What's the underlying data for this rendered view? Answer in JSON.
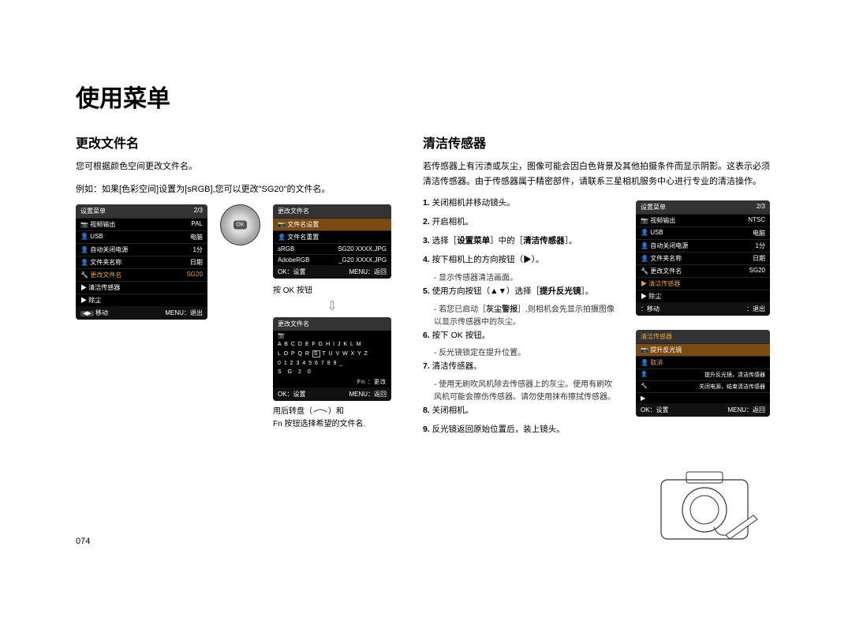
{
  "page_number": "074",
  "main_title": "使用菜单",
  "left": {
    "subtitle": "更改文件名",
    "p1": "您可根据颜色空间更改文件名。",
    "p2": "例如：如果[色彩空间]设置为[sRGB],您可以更改\"SG20\"的文件名。",
    "ok_caption": "按 OK 按钮",
    "bottom_caption1": "用后转盘（",
    "bottom_caption2": "）和",
    "bottom_caption3": "Fn 按钮选择希望的文件名.",
    "menu1": {
      "title": "设置菜单",
      "page": "2/3",
      "rows": [
        {
          "icon": "📷",
          "label": "视频输出",
          "val": "PAL"
        },
        {
          "icon": "👤",
          "label": "USB",
          "val": "电脑"
        },
        {
          "icon": "👤",
          "label": "自动关闭电源",
          "val": "1分"
        },
        {
          "icon": "👤",
          "label": "文件夹名称",
          "val": "日期"
        },
        {
          "icon": "🔧",
          "label": "更改文件名",
          "val": "SG20",
          "sel": true
        },
        {
          "icon": "▶",
          "label": "清洁传感器",
          "val": ""
        },
        {
          "icon": "▶",
          "label": "除尘",
          "val": ""
        }
      ],
      "foot_l": "移动",
      "foot_r": "MENU：退出"
    },
    "menu2": {
      "title": "更改文件名",
      "rows": [
        {
          "icon": "📷",
          "label": "文件名设置",
          "val": "",
          "hl": true
        },
        {
          "icon": "👤",
          "label": "文件名重置",
          "val": ""
        }
      ],
      "row3a": "sRGB",
      "row3b": "SG20 XXXX.JPG",
      "row4a": "AdobeRGB",
      "row4b": "_G20 XXXX.JPG",
      "foot_l": "OK：设置",
      "foot_r": "MENU：返回"
    },
    "menu3": {
      "title": "更改文件名",
      "alpha1": "A B C D E F G H I J K L M",
      "alpha2": "L O P Q R",
      "alpha2_sel": "S",
      "alpha2b": "T U V W X Y Z",
      "alpha3": "0 1 2 3 4 5 6 7 8 9 _",
      "entry": "S G 2 0",
      "fn": "Fn  ：更改",
      "foot_l": "OK：设置",
      "foot_r": "MENU：返回"
    }
  },
  "right": {
    "subtitle": "清洁传感器",
    "p1": "若传感器上有污渍或灰尘，图像可能会因白色背景及其他拍摄条件而显示阴影。这表示必须清洁传感器。由于传感器属于精密部件，请联系三星相机服务中心进行专业的清洁操作。",
    "steps": [
      {
        "n": "1.",
        "t": "关闭相机并移动镜头。"
      },
      {
        "n": "2.",
        "t": "开启相机。"
      },
      {
        "n": "3.",
        "t": "选择［设置菜单］中的［清洁传感器］。",
        "bold": [
          "设置菜单",
          "清洁传感器"
        ]
      },
      {
        "n": "4.",
        "t": "按下相机上的方向按钮（▶）。",
        "sub": "- 显示传感器清洁画面。"
      },
      {
        "n": "5.",
        "t": "使用方向按钮（▲▼）选择［提升反光镜］。",
        "bold": [
          "提升反光镜"
        ],
        "sub": "- 若您已启动［灰尘警报］,则相机会先显示拍摄图像以显示传感器中的灰尘。",
        "sub_bold": [
          "灰尘警报"
        ]
      },
      {
        "n": "6.",
        "t": "按下 OK 按钮。",
        "sub": "- 反光镜锁定在提升位置。"
      },
      {
        "n": "7.",
        "t": "清洁传感器。",
        "sub": "- 使用无刷吹风机除去传感器上的灰尘。使用有刷吹风机可能会擦伤传感器。请勿使用抹布擦拭传感器。"
      },
      {
        "n": "8.",
        "t": "关闭相机。"
      },
      {
        "n": "9.",
        "t": "反光镜返回原始位置后，装上镜头。"
      }
    ],
    "menu1": {
      "title": "设置菜单",
      "page": "2/3",
      "rows": [
        {
          "icon": "📷",
          "label": "视频输出",
          "val": "NTSC"
        },
        {
          "icon": "👤",
          "label": "USB",
          "val": "电脑"
        },
        {
          "icon": "👤",
          "label": "自动关闭电源",
          "val": "1分"
        },
        {
          "icon": "👤",
          "label": "文件夹名称",
          "val": "日期"
        },
        {
          "icon": "🔧",
          "label": "更改文件名",
          "val": "SG20"
        },
        {
          "icon": "▶",
          "label": "清洁传感器",
          "val": "",
          "sel": true
        },
        {
          "icon": "▶",
          "label": "除尘",
          "val": ""
        }
      ],
      "foot_l": "：移动",
      "foot_r": "：退出"
    },
    "menu2": {
      "title": "清洁传感器",
      "rows": [
        {
          "icon": "📷",
          "label": "提升反光镜",
          "val": "",
          "hl": true
        },
        {
          "icon": "👤",
          "label": "取消",
          "val": "",
          "orange": true
        }
      ],
      "note1": "提升反光镜，清洁传感器",
      "note2": "关闭电源，结束清洁传感器",
      "foot_l": "OK：设置",
      "foot_r": "MENU：返回"
    }
  }
}
